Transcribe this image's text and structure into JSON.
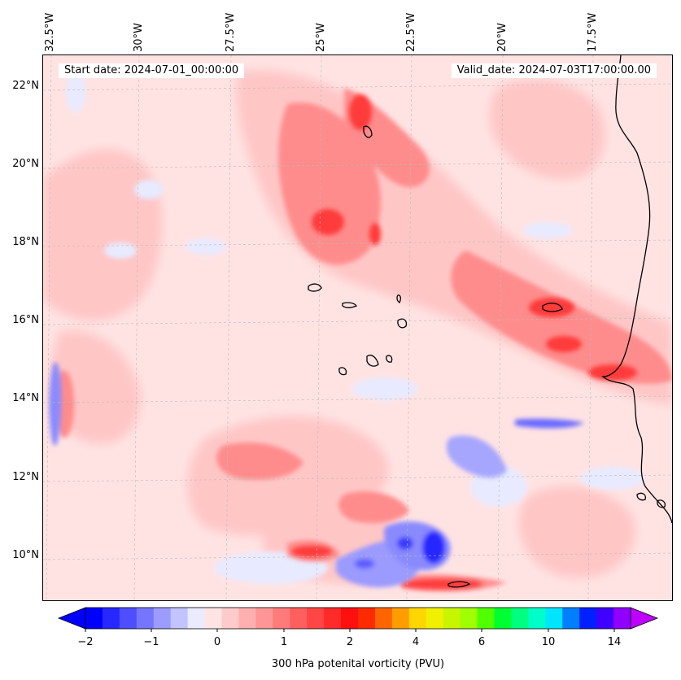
{
  "map": {
    "start_date": "Start date: 2024-07-01_00:00:00",
    "valid_date": "Valid_date: 2024-07-03T17:00:00.00",
    "lon_labels": [
      "32.5°W",
      "30°W",
      "27.5°W",
      "25°W",
      "22.5°W",
      "20°W",
      "17.5°W"
    ],
    "lat_labels": [
      "22°N",
      "20°N",
      "18°N",
      "16°N",
      "14°N",
      "12°N",
      "10°N"
    ],
    "colors": {
      "land_coast": "#000000",
      "background_pink": "#ffe3e3",
      "light_pink": "#ffc4c4",
      "mid_red": "#ff8a8a",
      "strong_red": "#ff3535",
      "light_blue": "#e6e8ff",
      "mid_blue": "#9090ff",
      "strong_blue": "#2020ff",
      "gridline": "#bbbbbb"
    }
  },
  "colorbar": {
    "label": "300 hPa potenital vorticity (PVU)",
    "tick_labels": [
      "−2",
      "−1",
      "0",
      "1",
      "2",
      "4",
      "6",
      "10",
      "14"
    ],
    "colors": [
      "#0000ff",
      "#2727ff",
      "#4e4eff",
      "#7575ff",
      "#9c9cff",
      "#c3c3ff",
      "#ebebff",
      "#ffe4e4",
      "#ffcaca",
      "#ffafaf",
      "#ff9595",
      "#ff7a7a",
      "#ff5f5f",
      "#ff4545",
      "#ff2a2a",
      "#ff0f0f",
      "#ff2a00",
      "#ff6400",
      "#ff9d00",
      "#ffd600",
      "#f0f000",
      "#c8f500",
      "#a0ff00",
      "#50ff00",
      "#00ff30",
      "#00ff80",
      "#00ffc8",
      "#00e5ff",
      "#0080ff",
      "#0020ff",
      "#4000ff",
      "#9000ff"
    ],
    "extend_low_color": "#0000ff",
    "extend_high_color": "#c000ff"
  }
}
